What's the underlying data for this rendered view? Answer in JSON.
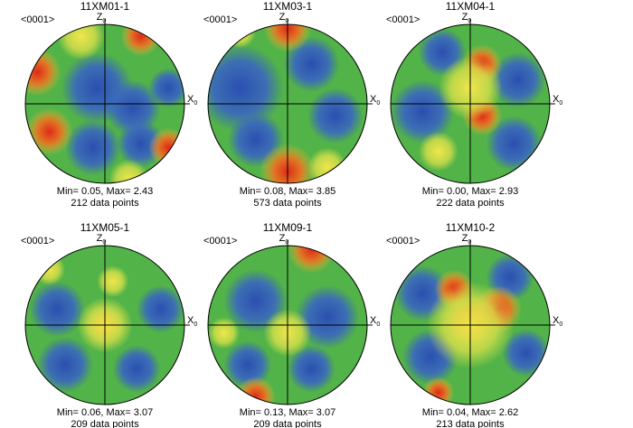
{
  "panels": [
    {
      "title": "11XM01-1",
      "projection": "<0001>",
      "z_label": "Z",
      "z_sub": "0",
      "x_label": "X",
      "x_sub": "0",
      "stats": "Min= 0.05, Max= 2.43",
      "count": "212 data points"
    },
    {
      "title": "11XM03-1",
      "projection": "<0001>",
      "z_label": "Z",
      "z_sub": "0",
      "x_label": "X",
      "x_sub": "0",
      "stats": "Min= 0.08, Max= 3.85",
      "count": "573 data points"
    },
    {
      "title": "11XM04-1",
      "projection": "<0001>",
      "z_label": "Z",
      "z_sub": "0",
      "x_label": "X",
      "x_sub": "0",
      "stats": "Min= 0.00, Max= 2.93",
      "count": "222 data points"
    },
    {
      "title": "11XM05-1",
      "projection": "<0001>",
      "z_label": "Z",
      "z_sub": "0",
      "x_label": "X",
      "x_sub": "0",
      "stats": "Min= 0.06, Max= 3.07",
      "count": "209 data points"
    },
    {
      "title": "11XM09-1",
      "projection": "<0001>",
      "z_label": "Z",
      "z_sub": "0",
      "x_label": "X",
      "x_sub": "0",
      "stats": "Min= 0.13, Max= 3.07",
      "count": "209 data points"
    },
    {
      "title": "11XM10-2",
      "projection": "<0001>",
      "z_label": "Z",
      "z_sub": "0",
      "x_label": "X",
      "x_sub": "0",
      "stats": "Min= 0.04, Max= 2.62",
      "count": "213 data points"
    }
  ]
}
